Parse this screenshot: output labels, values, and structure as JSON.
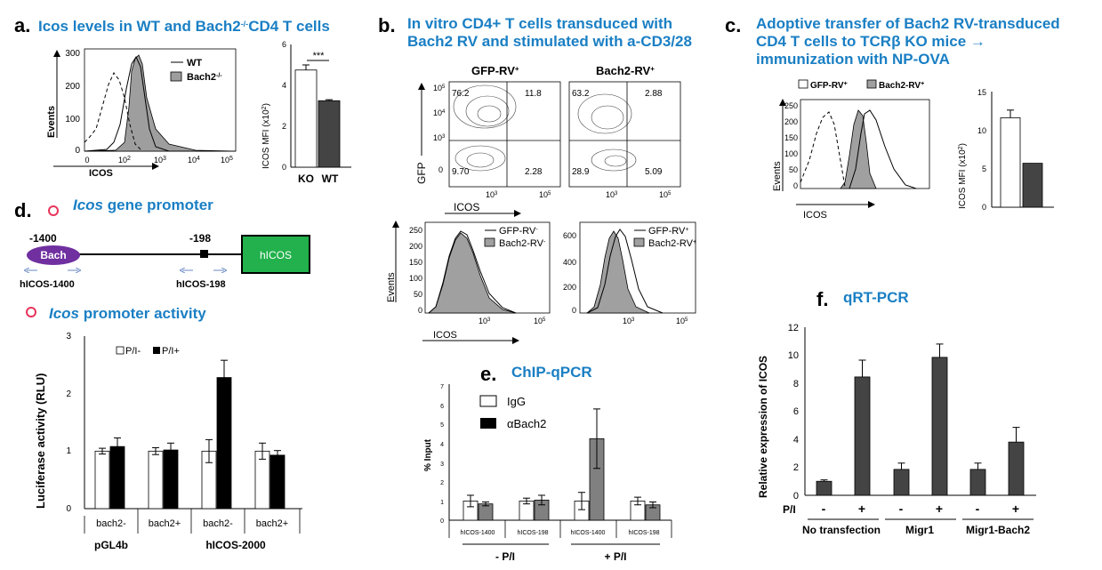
{
  "colors": {
    "title_blue": "#1a7fc4",
    "bar_dark": "#444444",
    "bar_gray": "#808080",
    "fill_gray": "#a0a0a0"
  },
  "panel_a": {
    "letter": "a.",
    "title_prefix": "Icos levels in WT and Bach2",
    "title_sup": "-/-",
    "title_suffix": "CD4 T cells",
    "legend_wt": "WT",
    "legend_ko": "Bach2",
    "legend_ko_sup": "-/-",
    "y_label": "Events",
    "x_label": "ICOS",
    "y_ticks": [
      "300",
      "200",
      "100",
      "0"
    ],
    "x_ticks": [
      "0",
      "10",
      "10",
      "10",
      "10"
    ],
    "x_tick_sups": [
      "",
      "2",
      "3",
      "4",
      "5"
    ],
    "mfi_label": "ICOS MFI (x10",
    "mfi_label_sup": "2",
    "mfi_label_end": ")",
    "mfi_ticks": [
      "6",
      "4",
      "2",
      "0"
    ],
    "sig": "***"
  },
  "chart_a": {
    "type": "bar",
    "categories": [
      "KO",
      "WT"
    ],
    "values": [
      4.75,
      3.25
    ],
    "errors": [
      0.25,
      0.05
    ],
    "ylim": [
      0,
      6
    ]
  },
  "panel_b": {
    "letter": "b.",
    "title_line1": "In vitro CD4+ T cells transduced with",
    "title_line2": "Bach2 RV and stimulated with a-CD3/28",
    "col1": "GFP-RV",
    "col2": "Bach2-RV",
    "col_sup": "+",
    "q_left": [
      "76.2",
      "11.8",
      "9.70",
      "2.28"
    ],
    "q_right": [
      "63.2",
      "2.88",
      "28.9",
      "5.09"
    ],
    "y_label": "GFP",
    "x_label": "ICOS",
    "log_base": "10",
    "exp": [
      "5",
      "4",
      "3",
      "2",
      "0",
      "-10"
    ],
    "x_exp": [
      "3",
      "5"
    ],
    "hist_y_label": "Events",
    "hist_x_label": "ICOS",
    "hist_left_ticks": [
      "250",
      "200",
      "150",
      "100",
      "50",
      "0"
    ],
    "hist_right_ticks": [
      "600",
      "400",
      "200",
      "0"
    ],
    "leg_gfp": "GFP-RV",
    "leg_bach2": "Bach2-RV",
    "leg_left_sup": "-",
    "leg_right_sup": "+"
  },
  "panel_c": {
    "letter": "c.",
    "title_line1": "Adoptive transfer of Bach2 RV-transduced",
    "title_line2a": "CD4 T cells to  TCR",
    "title_line2b": "β",
    "title_line2c": " KO mice ",
    "title_line2d": "→",
    "title_line3": "immunization with NP-OVA",
    "legend_gfp": "GFP-RV",
    "legend_bach2": "Bach2-RV",
    "legend_sup": "+",
    "y_label": "Events",
    "x_label": "ICOS",
    "y_ticks": [
      "250",
      "200",
      "150",
      "100",
      "50",
      "0"
    ],
    "mfi_label": "ICOS MFI (x10",
    "mfi_label_sup": "2",
    "mfi_label_end": ")",
    "mfi_ticks": [
      "15",
      "10",
      "5",
      "0"
    ]
  },
  "chart_c": {
    "type": "bar",
    "categories": [
      "GFP-RV+",
      "Bach2-RV+"
    ],
    "values": [
      11.6,
      5.7
    ],
    "errors": [
      1.0,
      0.0
    ],
    "ylim": [
      0,
      15
    ]
  },
  "panel_d": {
    "letter": "d.",
    "title_italic": "Icos",
    "title_rest": " gene promoter",
    "pos1": "-1400",
    "pos2": "-198",
    "bach_label": "Bach",
    "gene_label": "hICOS",
    "primer1": "hICOS-1400",
    "primer2": "hICOS-198",
    "activity_italic": "Icos",
    "activity_rest": " promoter activity",
    "y_label": "Luciferase activity (RLU)",
    "y_ticks": [
      "3",
      "2",
      "1",
      "0"
    ],
    "legend_minus": "P/I-",
    "legend_plus": "P/I+",
    "x_ticks": [
      "bach2-",
      "bach2+",
      "bach2-",
      "bach2+"
    ],
    "group1": "pGL4b",
    "group2": "hICOS-2000"
  },
  "chart_d": {
    "type": "bar",
    "categories": [
      "pGL4b bach2-",
      "pGL4b bach2+",
      "hICOS-2000 bach2-",
      "hICOS-2000 bach2+"
    ],
    "series": [
      {
        "name": "P/I-",
        "values": [
          1.0,
          1.0,
          1.0,
          1.0
        ],
        "errors": [
          0.05,
          0.06,
          0.2,
          0.14
        ]
      },
      {
        "name": "P/I+",
        "values": [
          1.08,
          1.02,
          2.28,
          0.93
        ],
        "errors": [
          0.15,
          0.12,
          0.3,
          0.08
        ]
      }
    ],
    "ylim": [
      0,
      3
    ]
  },
  "panel_e": {
    "letter": "e.",
    "title": "ChIP-qPCR",
    "legend_igg": "IgG",
    "legend_bach2": "αBach2",
    "y_label": "% Input",
    "y_ticks": [
      "7",
      "6",
      "5",
      "4",
      "3",
      "2",
      "1",
      "0"
    ],
    "x_ticks": [
      "hICOS-1400",
      "hICOS-198",
      "hICOS-1400",
      "hICOS-198"
    ],
    "group1": "- P/I",
    "group2": "+ P/I"
  },
  "chart_e": {
    "type": "bar",
    "categories": [
      "-P/I hICOS-1400",
      "-P/I hICOS-198",
      "+P/I hICOS-1400",
      "+P/I hICOS-198"
    ],
    "series": [
      {
        "name": "IgG",
        "values": [
          1.0,
          1.0,
          1.0,
          1.0
        ],
        "errors": [
          0.3,
          0.15,
          0.45,
          0.2
        ]
      },
      {
        "name": "αBach2",
        "values": [
          0.85,
          1.05,
          4.25,
          0.8
        ],
        "errors": [
          0.1,
          0.25,
          1.55,
          0.15
        ]
      }
    ],
    "ylim": [
      0,
      7
    ]
  },
  "panel_f": {
    "letter": "f.",
    "title": "qRT-PCR",
    "y_label": "Relative expression of ICOS",
    "y_ticks": [
      "12",
      "10",
      "8",
      "6",
      "4",
      "2",
      "0"
    ],
    "pi_label": "P/I",
    "pi_signs": [
      "-",
      "+",
      "-",
      "+",
      "-",
      "+"
    ],
    "groups": [
      "No transfection",
      "Migr1",
      "Migr1-Bach2"
    ]
  },
  "chart_f": {
    "type": "bar",
    "categories": [
      "No transfection -",
      "No transfection +",
      "Migr1 -",
      "Migr1 +",
      "Migr1-Bach2 -",
      "Migr1-Bach2 +"
    ],
    "values": [
      1.0,
      8.45,
      1.85,
      9.85,
      1.85,
      3.8
    ],
    "errors": [
      0.1,
      1.2,
      0.45,
      0.95,
      0.45,
      1.05
    ],
    "ylim": [
      0,
      12
    ]
  }
}
